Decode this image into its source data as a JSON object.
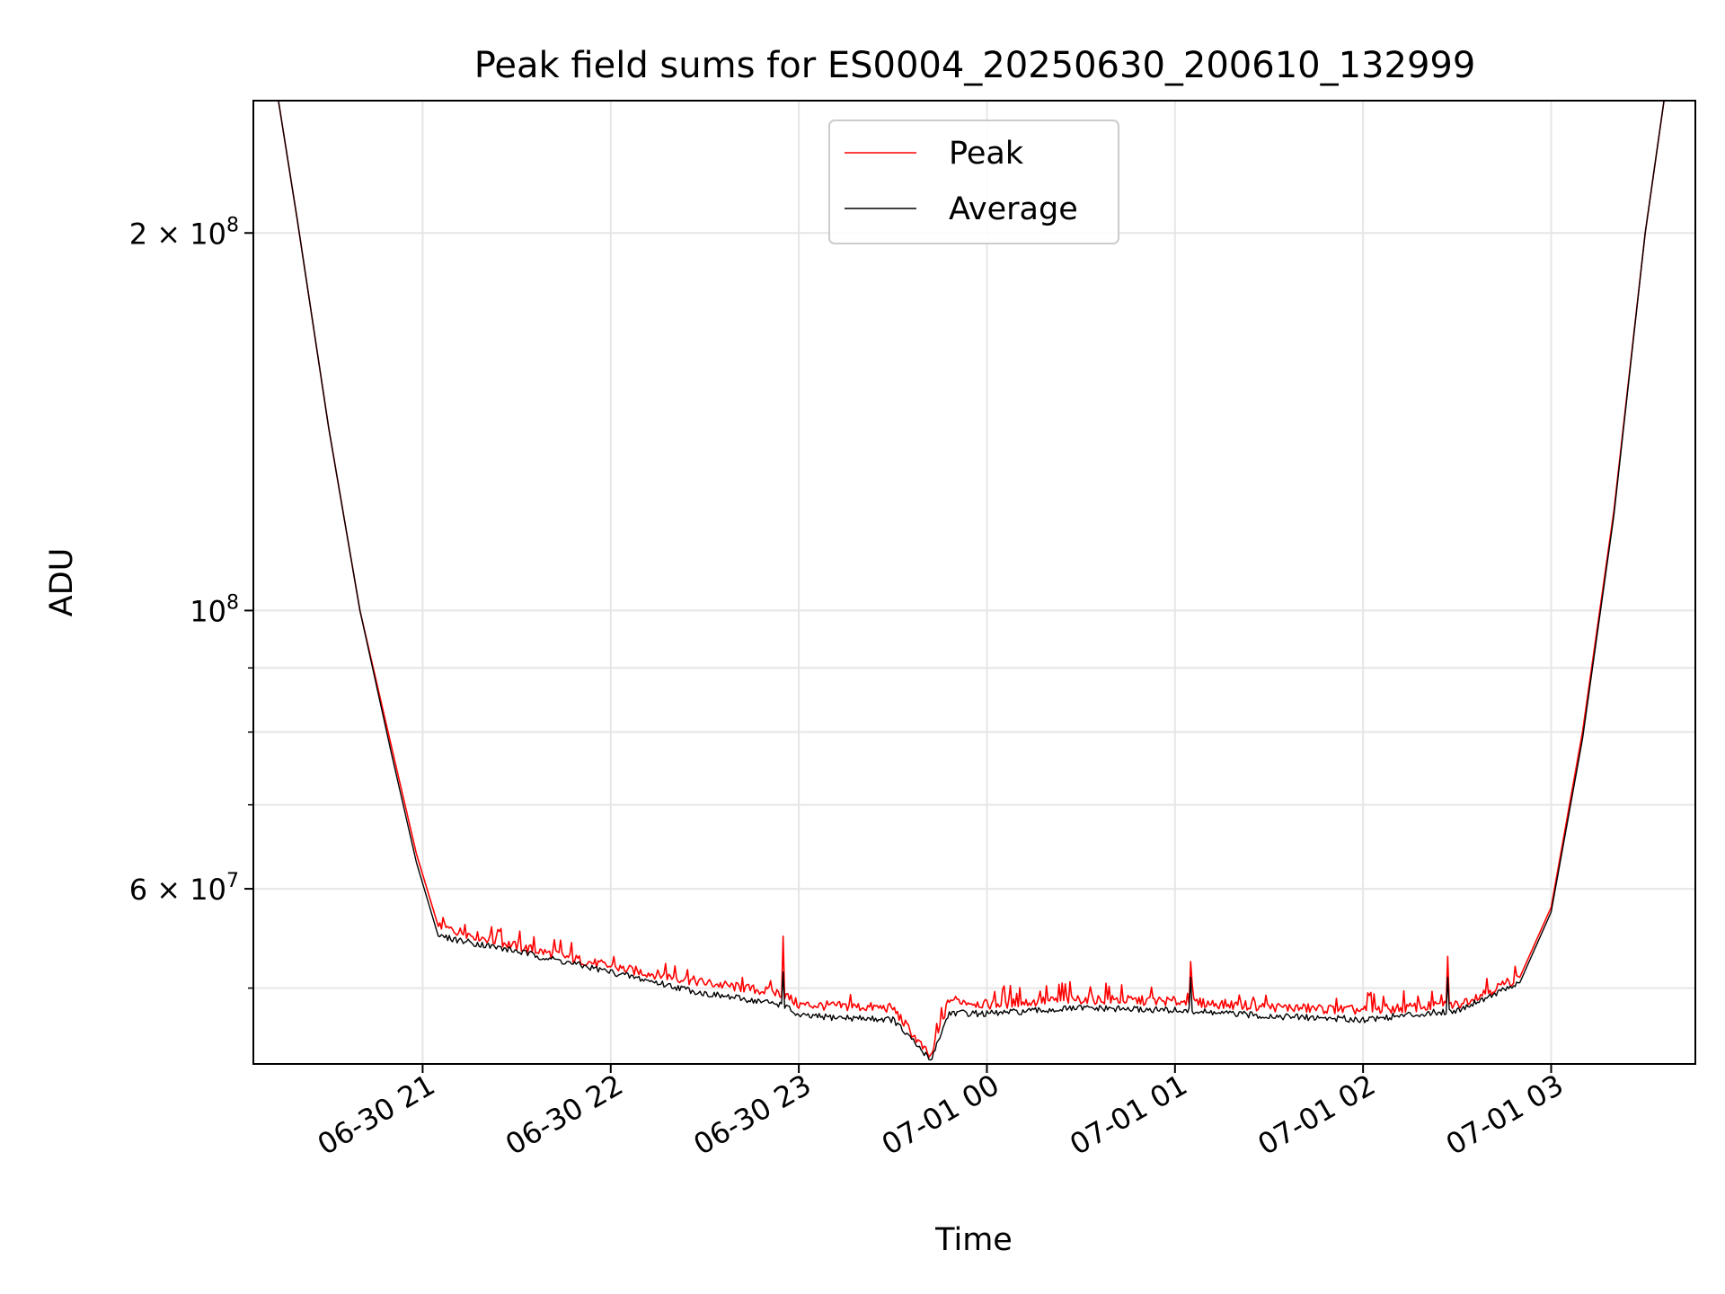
{
  "chart_data": {
    "type": "line",
    "title": "Peak field sums for ES0004_20250630_200610_132999",
    "xlabel": "Time",
    "ylabel": "ADU",
    "y_scale": "log",
    "ylim": [
      43500000,
      255000000
    ],
    "xlim": [
      "2025-06-30 20:06",
      "2025-07-01 03:46"
    ],
    "grid": true,
    "legend_position": "upper center",
    "x_ticks": [
      {
        "value": "2025-06-30 21:00",
        "label": "06-30 21"
      },
      {
        "value": "2025-06-30 22:00",
        "label": "06-30 22"
      },
      {
        "value": "2025-06-30 23:00",
        "label": "06-30 23"
      },
      {
        "value": "2025-07-01 00:00",
        "label": "07-01 00"
      },
      {
        "value": "2025-07-01 01:00",
        "label": "07-01 01"
      },
      {
        "value": "2025-07-01 02:00",
        "label": "07-01 02"
      },
      {
        "value": "2025-07-01 03:00",
        "label": "07-01 03"
      }
    ],
    "y_major_ticks": [
      {
        "value": 200000000,
        "mantissa": "2",
        "exponent": "8"
      },
      {
        "value": 100000000,
        "mantissa": "",
        "exponent": "8"
      },
      {
        "value": 60000000,
        "mantissa": "6",
        "exponent": "7"
      }
    ],
    "y_minor_ticks": [
      50000000,
      70000000,
      80000000,
      90000000
    ],
    "series": [
      {
        "name": "Peak",
        "color": "#ff0000",
        "points": [
          [
            "2025-06-30 20:06",
            255000000
          ],
          [
            "2025-06-30 20:14",
            255000000
          ],
          [
            "2025-06-30 20:20",
            205000000
          ],
          [
            "2025-06-30 20:30",
            140000000
          ],
          [
            "2025-06-30 20:40",
            100000000
          ],
          [
            "2025-06-30 20:50",
            78000000
          ],
          [
            "2025-06-30 20:58",
            64000000
          ],
          [
            "2025-06-30 21:05",
            56000000
          ],
          [
            "2025-06-30 21:30",
            54000000
          ],
          [
            "2025-06-30 22:00",
            52000000
          ],
          [
            "2025-06-30 22:30",
            50500000
          ],
          [
            "2025-06-30 22:55",
            49500000
          ],
          [
            "2025-06-30 23:00",
            48500000
          ],
          [
            "2025-06-30 23:30",
            48200000
          ],
          [
            "2025-06-30 23:42",
            44000000
          ],
          [
            "2025-06-30 23:48",
            49000000
          ],
          [
            "2025-07-01 00:00",
            48500000
          ],
          [
            "2025-07-01 00:30",
            49000000
          ],
          [
            "2025-07-01 01:00",
            48800000
          ],
          [
            "2025-07-01 01:30",
            48300000
          ],
          [
            "2025-07-01 02:00",
            48000000
          ],
          [
            "2025-07-01 02:30",
            48500000
          ],
          [
            "2025-07-01 02:50",
            51000000
          ],
          [
            "2025-07-01 03:00",
            58000000
          ],
          [
            "2025-07-01 03:10",
            80000000
          ],
          [
            "2025-07-01 03:20",
            120000000
          ],
          [
            "2025-07-01 03:30",
            200000000
          ],
          [
            "2025-07-01 03:36",
            255000000
          ],
          [
            "2025-07-01 03:46",
            255000000
          ]
        ],
        "spikes": [
          [
            "2025-06-30 22:55",
            55000000
          ],
          [
            "2025-07-01 01:05",
            52500000
          ],
          [
            "2025-07-01 02:27",
            53000000
          ]
        ]
      },
      {
        "name": "Average",
        "color": "#000000",
        "points": [
          [
            "2025-06-30 20:06",
            255000000
          ],
          [
            "2025-06-30 20:14",
            255000000
          ],
          [
            "2025-06-30 20:20",
            205000000
          ],
          [
            "2025-06-30 20:30",
            140000000
          ],
          [
            "2025-06-30 20:40",
            100000000
          ],
          [
            "2025-06-30 20:50",
            77000000
          ],
          [
            "2025-06-30 20:58",
            63000000
          ],
          [
            "2025-06-30 21:05",
            55000000
          ],
          [
            "2025-06-30 21:30",
            53500000
          ],
          [
            "2025-06-30 22:00",
            51500000
          ],
          [
            "2025-06-30 22:30",
            49500000
          ],
          [
            "2025-06-30 22:55",
            48500000
          ],
          [
            "2025-06-30 23:00",
            47500000
          ],
          [
            "2025-06-30 23:30",
            47200000
          ],
          [
            "2025-06-30 23:42",
            43800000
          ],
          [
            "2025-06-30 23:48",
            47800000
          ],
          [
            "2025-07-01 00:00",
            47700000
          ],
          [
            "2025-07-01 00:30",
            48200000
          ],
          [
            "2025-07-01 01:00",
            48000000
          ],
          [
            "2025-07-01 01:30",
            47500000
          ],
          [
            "2025-07-01 02:00",
            47200000
          ],
          [
            "2025-07-01 02:30",
            48000000
          ],
          [
            "2025-07-01 02:50",
            50500000
          ],
          [
            "2025-07-01 03:00",
            57500000
          ],
          [
            "2025-07-01 03:10",
            79000000
          ],
          [
            "2025-07-01 03:20",
            119000000
          ],
          [
            "2025-07-01 03:30",
            200000000
          ],
          [
            "2025-07-01 03:36",
            255000000
          ],
          [
            "2025-07-01 03:46",
            255000000
          ]
        ],
        "spikes": [
          [
            "2025-06-30 22:55",
            51500000
          ],
          [
            "2025-07-01 01:05",
            51000000
          ],
          [
            "2025-07-01 02:27",
            51000000
          ]
        ]
      }
    ]
  }
}
